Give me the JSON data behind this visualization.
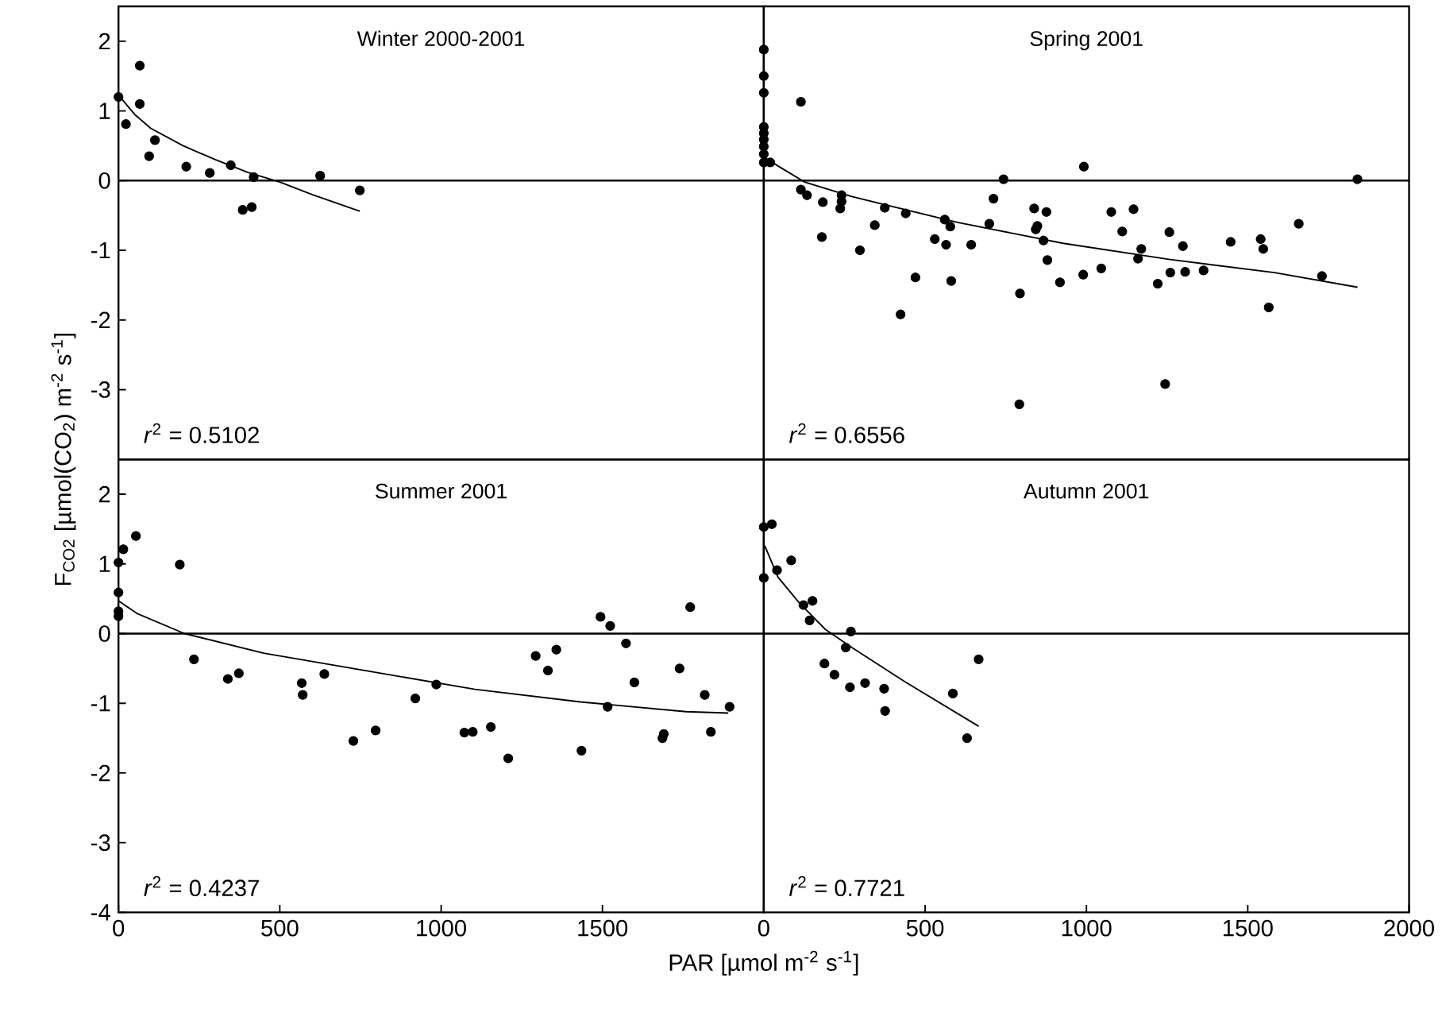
{
  "chart_data": [
    {
      "type": "scatter",
      "title": "Winter 2000-2001",
      "xlim": [
        0,
        2000
      ],
      "ylim": [
        -4,
        2.5
      ],
      "yticks": [
        -3,
        -2,
        -1,
        0,
        1,
        2
      ],
      "tick_labels": "y",
      "annotations": [
        "*r*$^{2}$ = 0.5102"
      ],
      "ref_lines": [
        {
          "axis": "y",
          "value": 0
        }
      ],
      "series": [
        {
          "marker": "circle",
          "color": "#000000",
          "x": [
            0,
            23,
            66,
            66,
            95,
            113,
            210,
            283,
            348,
            385,
            413,
            419,
            625,
            748
          ],
          "values": [
            1.2,
            0.81,
            1.65,
            1.1,
            0.35,
            0.58,
            0.2,
            0.11,
            0.22,
            -0.42,
            -0.38,
            0.05,
            0.07,
            -0.14
          ]
        },
        {
          "type": "line",
          "marker": "none",
          "color": "#000000",
          "x": [
            5,
            50,
            100,
            200,
            300,
            400,
            500,
            600,
            748
          ],
          "values": [
            1.2,
            0.95,
            0.75,
            0.5,
            0.3,
            0.12,
            -0.02,
            -0.2,
            -0.44
          ]
        }
      ]
    },
    {
      "type": "scatter",
      "title": "Spring 2001",
      "xlim": [
        0,
        2000
      ],
      "ylim": [
        -4,
        2.5
      ],
      "tick_labels": false,
      "annotations": [
        "*r*$^{2}$ = 0.6556"
      ],
      "ref_lines": [
        {
          "axis": "y",
          "value": 0
        }
      ],
      "series": [
        {
          "marker": "circle",
          "color": "#000000",
          "x": [
            0,
            0,
            0,
            0,
            0,
            0,
            0,
            0,
            0,
            20,
            115,
            115,
            134,
            183,
            180,
            241,
            241,
            237,
            298,
            344,
            375,
            424,
            440,
            470,
            530,
            561,
            565,
            578,
            581,
            643,
            699,
            712,
            743,
            794,
            792,
            838,
            843,
            848,
            867,
            876,
            879,
            918,
            992,
            990,
            1046,
            1077,
            1111,
            1146,
            1170,
            1160,
            1221,
            1244,
            1257,
            1260,
            1299,
            1306,
            1363,
            1447,
            1540,
            1548,
            1565,
            1658,
            1730,
            1840
          ],
          "values": [
            1.88,
            1.5,
            1.26,
            0.77,
            0.68,
            0.59,
            0.49,
            0.38,
            0.26,
            0.26,
            1.13,
            -0.13,
            -0.21,
            -0.31,
            -0.81,
            -0.21,
            -0.3,
            -0.4,
            -1.0,
            -0.64,
            -0.39,
            -1.92,
            -0.47,
            -1.39,
            -0.84,
            -0.56,
            -0.92,
            -0.66,
            -1.44,
            -0.92,
            -0.62,
            -0.26,
            0.02,
            -1.62,
            -3.21,
            -0.4,
            -0.7,
            -0.65,
            -0.86,
            -0.45,
            -1.14,
            -1.46,
            0.2,
            -1.35,
            -1.26,
            -0.45,
            -0.73,
            -0.41,
            -0.98,
            -1.12,
            -1.48,
            -2.92,
            -0.74,
            -1.32,
            -0.94,
            -1.31,
            -1.29,
            -0.88,
            -0.84,
            -0.98,
            -1.82,
            -0.62,
            -1.37,
            0.02
          ]
        },
        {
          "type": "line",
          "marker": "none",
          "color": "#000000",
          "x": [
            0,
            44,
            126,
            273,
            600,
            928,
            1255,
            1583,
            1840
          ],
          "values": [
            0.34,
            0.21,
            -0.02,
            -0.23,
            -0.6,
            -0.9,
            -1.13,
            -1.32,
            -1.53
          ]
        }
      ]
    },
    {
      "type": "scatter",
      "title": "Summer 2001",
      "xlabel": "PAR [µmol m$^{-2}$ s$^{-1}$]",
      "ylabel": "F$_{CO2}$ [µmol(CO$_{2}$) m$^{-2}$ s$^{-1}$]",
      "xlim": [
        0,
        2000
      ],
      "ylim": [
        -4,
        2.5
      ],
      "xticks": [
        0,
        500,
        1000,
        1500
      ],
      "yticks": [
        -4,
        -3,
        -2,
        -1,
        0,
        1,
        2
      ],
      "annotations": [
        "*r*$^{2}$ = 0.4237"
      ],
      "ref_lines": [
        {
          "axis": "y",
          "value": 0
        }
      ],
      "series": [
        {
          "marker": "circle",
          "color": "#000000",
          "x": [
            0,
            15,
            54,
            0,
            0,
            0,
            190,
            234,
            339,
            373,
            568,
            571,
            638,
            728,
            797,
            920,
            985,
            1072,
            1098,
            1154,
            1208,
            1293,
            1331,
            1357,
            1435,
            1494,
            1524,
            1516,
            1573,
            1599,
            1686,
            1690,
            1739,
            1772,
            1817,
            1836,
            1894
          ],
          "values": [
            1.02,
            1.21,
            1.4,
            0.59,
            0.32,
            0.25,
            0.99,
            -0.37,
            -0.65,
            -0.57,
            -0.71,
            -0.88,
            -0.58,
            -1.54,
            -1.39,
            -0.93,
            -0.73,
            -1.42,
            -1.41,
            -1.34,
            -1.79,
            -0.32,
            -0.53,
            -0.23,
            -1.68,
            0.24,
            0.11,
            -1.05,
            -0.14,
            -0.7,
            -1.5,
            -1.44,
            -0.5,
            0.38,
            -0.88,
            -1.41,
            -1.05
          ]
        },
        {
          "type": "line",
          "marker": "none",
          "color": "#000000",
          "x": [
            0,
            57,
            205,
            450,
            777,
            1105,
            1432,
            1759,
            1890
          ],
          "values": [
            0.47,
            0.29,
            0,
            -0.28,
            -0.54,
            -0.8,
            -0.98,
            -1.12,
            -1.14
          ]
        }
      ]
    },
    {
      "type": "scatter",
      "title": "Autumn 2001",
      "xlim": [
        0,
        2000
      ],
      "ylim": [
        -4,
        2.5
      ],
      "xticks": [
        0,
        500,
        1000,
        1500,
        2000
      ],
      "tick_labels": "x",
      "annotations": [
        "*r*$^{2}$ = 0.7721"
      ],
      "ref_lines": [
        {
          "axis": "y",
          "value": 0
        }
      ],
      "series": [
        {
          "marker": "circle",
          "color": "#000000",
          "x": [
            0,
            25,
            0,
            41,
            85,
            123,
            151,
            142,
            270,
            254,
            188,
            219,
            267,
            314,
            373,
            376,
            586,
            630,
            666
          ],
          "values": [
            1.53,
            1.57,
            0.8,
            0.91,
            1.05,
            0.41,
            0.47,
            0.19,
            0.03,
            -0.2,
            -0.43,
            -0.59,
            -0.77,
            -0.71,
            -0.79,
            -1.11,
            -0.86,
            -1.5,
            -0.37
          ]
        },
        {
          "type": "line",
          "marker": "none",
          "color": "#000000",
          "x": [
            3,
            44,
            110,
            191,
            273,
            437,
            666
          ],
          "values": [
            1.26,
            0.81,
            0.44,
            0.06,
            -0.2,
            -0.69,
            -1.33
          ]
        }
      ]
    }
  ]
}
